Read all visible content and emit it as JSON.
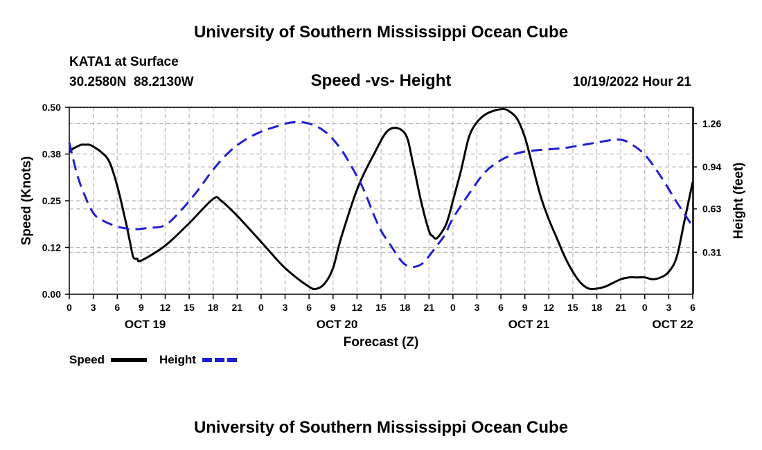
{
  "header": {
    "title": "University of Southern Mississippi Ocean Cube",
    "station": "KATA1 at Surface",
    "coords": "30.2580N  88.2130W",
    "date": "10/19/2022 Hour 21",
    "footer_title": "University of Southern Mississippi Ocean Cube"
  },
  "chart_data": {
    "type": "line",
    "title": "Speed -vs- Height",
    "xlabel": "Forecast (Z)",
    "ylabel_left": "Speed (Knots)",
    "ylabel_right": "Height (feet)",
    "x_unit": "hours since 10/19 00Z",
    "xlim": [
      0,
      78
    ],
    "ylim_left": [
      0,
      0.5
    ],
    "ylim_right": [
      0,
      1.38
    ],
    "x_tick_values": [
      0,
      3,
      6,
      9,
      12,
      15,
      18,
      21,
      24,
      27,
      30,
      33,
      36,
      39,
      42,
      45,
      48,
      51,
      54,
      57,
      60,
      63,
      66,
      69,
      72,
      75,
      78
    ],
    "x_tick_labels": [
      "0",
      "3",
      "6",
      "9",
      "12",
      "15",
      "18",
      "21",
      "0",
      "3",
      "6",
      "9",
      "12",
      "15",
      "18",
      "21",
      "0",
      "3",
      "6",
      "9",
      "12",
      "15",
      "18",
      "21",
      "0",
      "3",
      "6"
    ],
    "left_ticks": [
      {
        "v": 0,
        "label": "0.00"
      },
      {
        "v": 0.125,
        "label": "0.12"
      },
      {
        "v": 0.25,
        "label": "0.25"
      },
      {
        "v": 0.375,
        "label": "0.38"
      },
      {
        "v": 0.5,
        "label": "0.50"
      }
    ],
    "right_ticks": [
      {
        "v": 0.31,
        "label": "0.31"
      },
      {
        "v": 0.63,
        "label": "0.63"
      },
      {
        "v": 0.94,
        "label": "0.94"
      },
      {
        "v": 1.26,
        "label": "1.26"
      }
    ],
    "day_labels": [
      {
        "x": 9.5,
        "label": "OCT 19"
      },
      {
        "x": 33.5,
        "label": "OCT 20"
      },
      {
        "x": 57.5,
        "label": "OCT 21"
      },
      {
        "x": 75.5,
        "label": "OCT 22"
      }
    ],
    "grid": true,
    "legend_position": "bottom-left",
    "series": [
      {
        "name": "Speed",
        "axis": "left",
        "color": "#000000",
        "dash": "solid",
        "x": [
          0,
          0.5,
          1,
          1.5,
          2,
          2.5,
          3,
          4,
          5,
          6,
          7,
          7.5,
          8,
          8.5,
          9,
          12,
          15,
          18,
          19,
          21,
          24,
          27,
          30,
          31,
          32,
          33,
          34,
          36,
          38,
          40,
          42,
          43,
          44,
          45,
          45.5,
          46,
          47,
          47.5,
          48,
          49,
          50,
          51,
          52,
          53,
          54,
          54.5,
          55,
          56,
          57,
          58,
          59,
          60,
          61,
          62,
          63,
          64,
          65,
          66,
          67,
          68,
          69,
          70,
          71,
          72,
          73,
          74,
          75,
          76,
          77,
          78
        ],
        "values": [
          0.38,
          0.39,
          0.395,
          0.4,
          0.4,
          0.4,
          0.395,
          0.38,
          0.355,
          0.29,
          0.2,
          0.15,
          0.1,
          0.095,
          0.09,
          0.13,
          0.19,
          0.255,
          0.25,
          0.21,
          0.14,
          0.07,
          0.02,
          0.015,
          0.03,
          0.07,
          0.15,
          0.28,
          0.37,
          0.44,
          0.43,
          0.35,
          0.25,
          0.17,
          0.155,
          0.15,
          0.18,
          0.21,
          0.25,
          0.33,
          0.42,
          0.46,
          0.48,
          0.49,
          0.495,
          0.495,
          0.49,
          0.47,
          0.42,
          0.34,
          0.26,
          0.2,
          0.15,
          0.1,
          0.06,
          0.03,
          0.015,
          0.015,
          0.02,
          0.03,
          0.04,
          0.045,
          0.045,
          0.045,
          0.04,
          0.045,
          0.06,
          0.1,
          0.2,
          0.3
        ]
      },
      {
        "name": "Height",
        "axis": "right",
        "color": "#1f1fd2",
        "dash": "dashed",
        "x": [
          0,
          1,
          2,
          3,
          4,
          6,
          8,
          10,
          12,
          14,
          16,
          18,
          20,
          22,
          24,
          26,
          28,
          30,
          32,
          34,
          36,
          37,
          38,
          39,
          40,
          42,
          44,
          46,
          47,
          48,
          50,
          52,
          54,
          56,
          58,
          60,
          62,
          64,
          66,
          68,
          69,
          70,
          72,
          74,
          76,
          78
        ],
        "values": [
          1.12,
          0.88,
          0.72,
          0.6,
          0.55,
          0.5,
          0.48,
          0.49,
          0.51,
          0.62,
          0.76,
          0.92,
          1.05,
          1.14,
          1.2,
          1.24,
          1.27,
          1.26,
          1.2,
          1.07,
          0.87,
          0.75,
          0.6,
          0.47,
          0.38,
          0.22,
          0.22,
          0.36,
          0.44,
          0.56,
          0.74,
          0.9,
          0.99,
          1.04,
          1.06,
          1.07,
          1.08,
          1.1,
          1.12,
          1.14,
          1.14,
          1.12,
          1.03,
          0.87,
          0.68,
          0.5
        ]
      }
    ]
  }
}
